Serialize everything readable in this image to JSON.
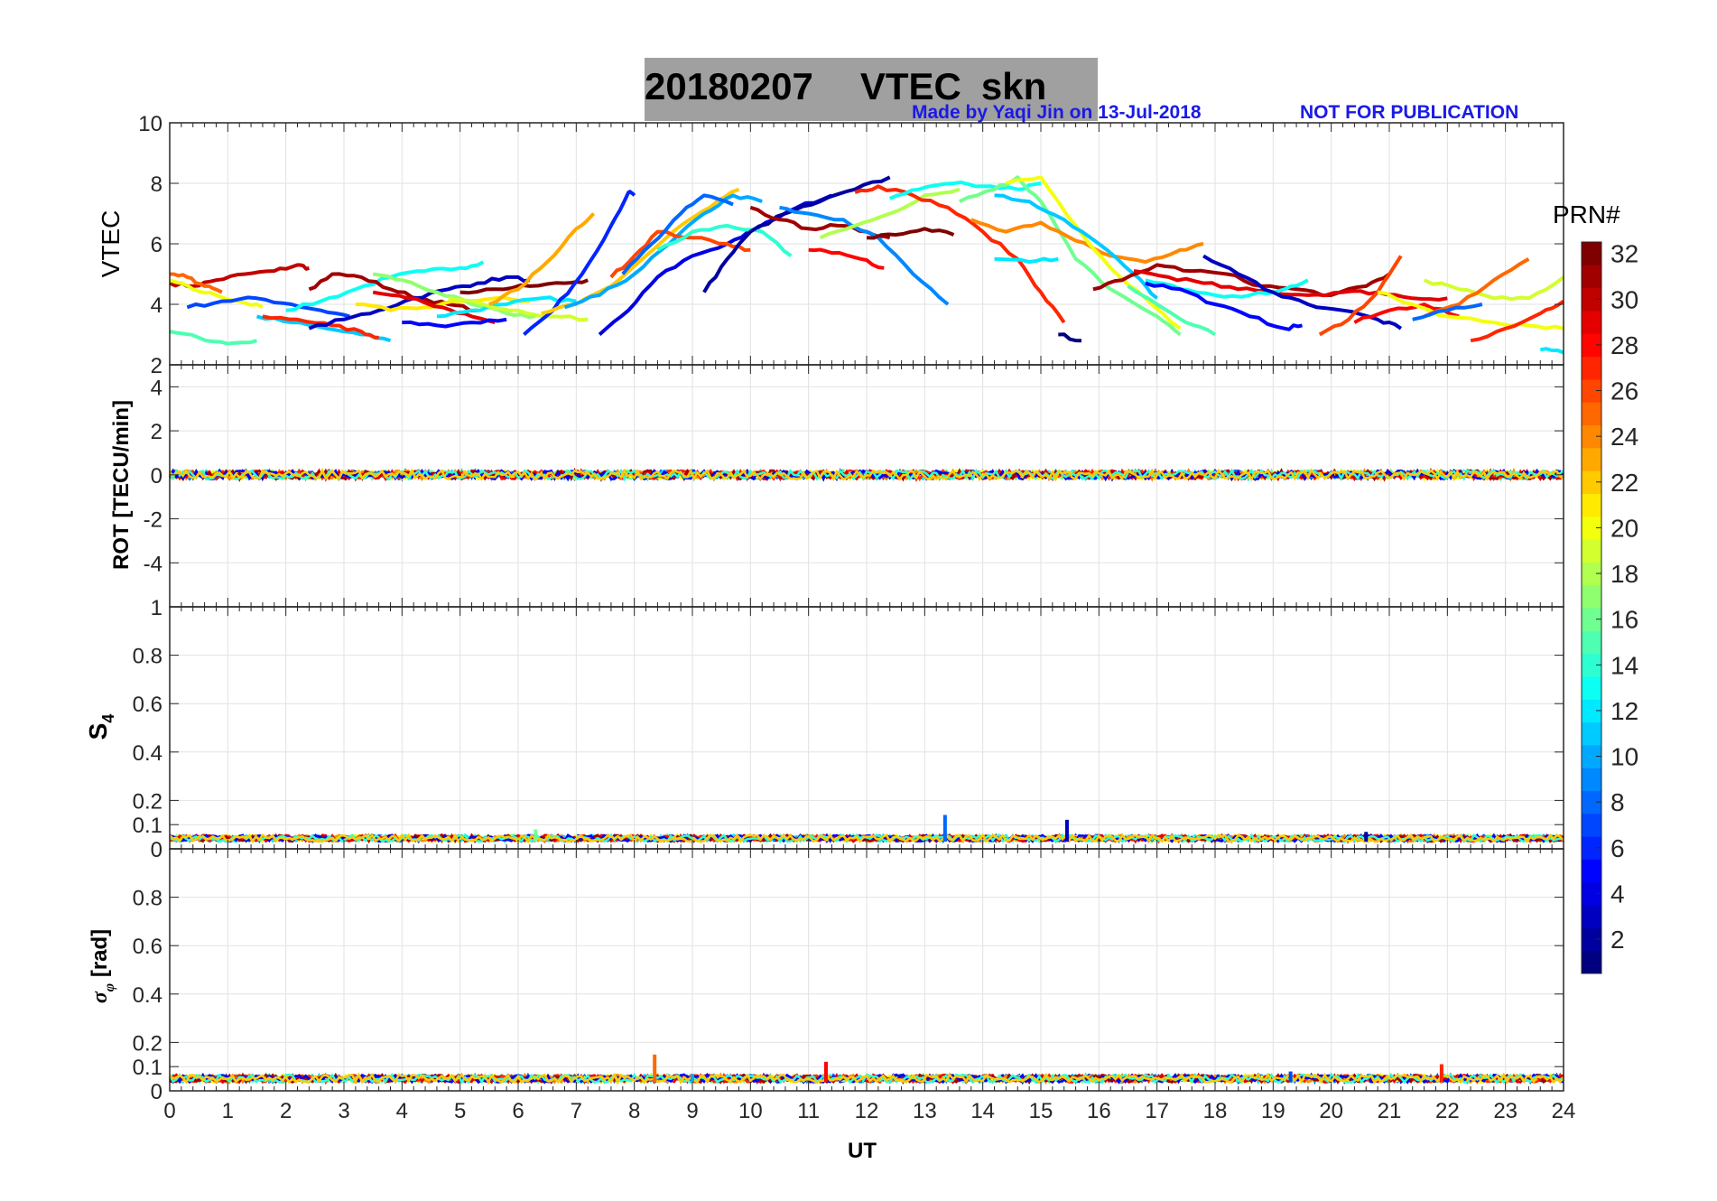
{
  "title": {
    "date": "20180207",
    "quantity": "VTEC",
    "station": "skn",
    "credit": "Made by Yaqi Jin on 13-Jul-2018",
    "notice": "NOT FOR PUBLICATION"
  },
  "colorbar": {
    "label": "PRN#",
    "range": [
      1,
      32
    ],
    "ticks": [
      "2",
      "4",
      "6",
      "8",
      "10",
      "12",
      "14",
      "16",
      "18",
      "20",
      "22",
      "24",
      "26",
      "28",
      "30",
      "32"
    ],
    "colormap": "jet"
  },
  "chart_data": [
    {
      "panel": "vtec",
      "type": "line",
      "title": "20180207    VTEC  skn",
      "xlabel": "",
      "ylabel": "VTEC",
      "xlim": [
        0,
        24
      ],
      "ylim": [
        2,
        10
      ],
      "yticks": [
        "2",
        "4",
        "6",
        "8",
        "10"
      ],
      "grid": true,
      "series": [
        {
          "prn": 30,
          "x": [
            0,
            0.4,
            0.8,
            1.3,
            1.8,
            2.2,
            2.4
          ],
          "y": [
            4.7,
            4.6,
            4.8,
            5.0,
            5.1,
            5.3,
            5.2
          ]
        },
        {
          "prn": 25,
          "x": [
            0,
            0.3,
            0.6,
            0.9
          ],
          "y": [
            5.0,
            4.9,
            4.6,
            4.4
          ]
        },
        {
          "prn": 20,
          "x": [
            0,
            0.4,
            0.8,
            1.2,
            1.6
          ],
          "y": [
            4.8,
            4.5,
            4.3,
            4.1,
            3.9
          ]
        },
        {
          "prn": 15,
          "x": [
            0,
            0.5,
            1.0,
            1.5
          ],
          "y": [
            3.1,
            2.9,
            2.7,
            2.8
          ]
        },
        {
          "prn": 7,
          "x": [
            0.3,
            0.9,
            1.5,
            2.1,
            2.6,
            3.1
          ],
          "y": [
            3.9,
            4.1,
            4.2,
            4.0,
            3.8,
            3.6
          ]
        },
        {
          "prn": 11,
          "x": [
            1.5,
            2.1,
            2.7,
            3.3,
            3.8
          ],
          "y": [
            3.6,
            3.4,
            3.2,
            3.0,
            2.8
          ]
        },
        {
          "prn": 27,
          "x": [
            1.6,
            2.2,
            2.8,
            3.3,
            3.6
          ],
          "y": [
            3.6,
            3.5,
            3.3,
            3.1,
            2.9
          ]
        },
        {
          "prn": 13,
          "x": [
            2.0,
            2.6,
            3.2,
            3.8,
            4.4,
            5.0,
            5.4
          ],
          "y": [
            3.8,
            4.1,
            4.5,
            4.9,
            5.1,
            5.2,
            5.4
          ]
        },
        {
          "prn": 31,
          "x": [
            2.4,
            2.8,
            3.3,
            3.8,
            4.3,
            4.8,
            5.3
          ],
          "y": [
            4.5,
            5.0,
            4.9,
            4.5,
            4.2,
            4.0,
            3.8
          ]
        },
        {
          "prn": 3,
          "x": [
            2.4,
            3.0,
            3.6,
            4.2,
            4.8,
            5.3,
            5.8,
            6.2
          ],
          "y": [
            3.2,
            3.5,
            3.8,
            4.2,
            4.5,
            4.7,
            4.9,
            4.8
          ]
        },
        {
          "prn": 21,
          "x": [
            3.2,
            3.8,
            4.4,
            5.0,
            5.6,
            6.2
          ],
          "y": [
            4.0,
            3.8,
            3.9,
            4.1,
            4.2,
            4.1
          ]
        },
        {
          "prn": 17,
          "x": [
            3.5,
            4.0,
            4.6,
            5.2,
            5.8,
            6.3
          ],
          "y": [
            5.0,
            4.8,
            4.4,
            4.0,
            3.7,
            3.6
          ]
        },
        {
          "prn": 29,
          "x": [
            3.5,
            4.1,
            4.7,
            5.2,
            5.6
          ],
          "y": [
            4.4,
            4.2,
            3.9,
            3.6,
            3.4
          ]
        },
        {
          "prn": 5,
          "x": [
            4.0,
            4.6,
            5.2,
            5.8
          ],
          "y": [
            3.4,
            3.3,
            3.4,
            3.5
          ]
        },
        {
          "prn": 12,
          "x": [
            4.6,
            5.2,
            5.8,
            6.4,
            7.0
          ],
          "y": [
            3.6,
            3.8,
            4.0,
            4.2,
            4.1
          ]
        },
        {
          "prn": 19,
          "x": [
            4.8,
            5.4,
            6.0,
            6.6,
            7.2
          ],
          "y": [
            4.2,
            4.0,
            3.8,
            3.6,
            3.5
          ]
        },
        {
          "prn": 32,
          "x": [
            5.0,
            5.6,
            6.2,
            6.8,
            7.2
          ],
          "y": [
            4.4,
            4.5,
            4.6,
            4.7,
            4.8
          ]
        },
        {
          "prn": 23,
          "x": [
            5.5,
            6.0,
            6.5,
            7.0,
            7.3
          ],
          "y": [
            4.0,
            4.5,
            5.4,
            6.5,
            7.0
          ]
        },
        {
          "prn": 6,
          "x": [
            6.1,
            6.6,
            7.1,
            7.6,
            7.9,
            8.0
          ],
          "y": [
            3.0,
            3.8,
            5.0,
            6.6,
            7.7,
            7.6
          ]
        },
        {
          "prn": 22,
          "x": [
            6.4,
            7.0,
            7.6,
            8.2,
            8.8,
            9.3,
            9.8
          ],
          "y": [
            3.7,
            4.0,
            4.6,
            5.6,
            6.6,
            7.2,
            7.8
          ]
        },
        {
          "prn": 10,
          "x": [
            6.8,
            7.4,
            8.0,
            8.6,
            9.2,
            9.7,
            10.2
          ],
          "y": [
            3.9,
            4.3,
            5.0,
            6.0,
            7.0,
            7.6,
            7.4
          ]
        },
        {
          "prn": 4,
          "x": [
            7.4,
            7.9,
            8.4,
            9.0,
            9.6,
            10.1,
            10.8,
            11.4
          ],
          "y": [
            3.0,
            3.8,
            4.9,
            5.6,
            6.0,
            6.5,
            7.2,
            7.6
          ]
        },
        {
          "prn": 26,
          "x": [
            7.6,
            8.0,
            8.4,
            9.0,
            9.6,
            10.0
          ],
          "y": [
            4.9,
            5.6,
            6.4,
            6.2,
            6.0,
            5.8
          ]
        },
        {
          "prn": 8,
          "x": [
            7.8,
            8.3,
            8.8,
            9.2,
            9.7
          ],
          "y": [
            5.0,
            6.0,
            7.0,
            7.6,
            7.3
          ]
        },
        {
          "prn": 14,
          "x": [
            8.4,
            9.0,
            9.6,
            10.2,
            10.7
          ],
          "y": [
            5.8,
            6.4,
            6.6,
            6.4,
            5.6
          ]
        },
        {
          "prn": 2,
          "x": [
            9.2,
            9.6,
            10.0,
            10.6,
            11.2,
            11.8,
            12.4
          ],
          "y": [
            4.4,
            5.5,
            6.4,
            7.0,
            7.4,
            7.8,
            8.2
          ]
        },
        {
          "prn": 31,
          "x": [
            10.0,
            10.5,
            11.0,
            11.5,
            12.0,
            12.4
          ],
          "y": [
            7.2,
            6.8,
            6.5,
            6.6,
            6.4,
            6.2
          ]
        },
        {
          "prn": 9,
          "x": [
            10.5,
            11.0,
            11.6,
            12.2,
            12.8,
            13.4
          ],
          "y": [
            7.2,
            7.0,
            6.8,
            6.2,
            5.0,
            4.0
          ]
        },
        {
          "prn": 28,
          "x": [
            11.0,
            11.4,
            11.9,
            12.3
          ],
          "y": [
            5.8,
            5.7,
            5.5,
            5.2
          ]
        },
        {
          "prn": 18,
          "x": [
            11.2,
            11.8,
            12.4,
            13.0,
            13.6
          ],
          "y": [
            6.2,
            6.6,
            7.0,
            7.6,
            7.8
          ]
        },
        {
          "prn": 27,
          "x": [
            11.8,
            12.2,
            12.8,
            13.4,
            14.0,
            14.6,
            15.0,
            15.4
          ],
          "y": [
            7.7,
            7.9,
            7.6,
            7.2,
            6.4,
            5.5,
            4.4,
            3.4
          ]
        },
        {
          "prn": 32,
          "x": [
            12.0,
            12.5,
            13.0,
            13.5
          ],
          "y": [
            6.2,
            6.3,
            6.5,
            6.3
          ]
        },
        {
          "prn": 13,
          "x": [
            12.4,
            12.9,
            13.5,
            14.0,
            14.6,
            15.0
          ],
          "y": [
            7.5,
            7.8,
            8.0,
            7.9,
            7.8,
            8.0
          ]
        },
        {
          "prn": 16,
          "x": [
            13.6,
            14.2,
            14.6,
            15.0,
            15.6,
            16.2,
            17.0,
            17.4
          ],
          "y": [
            7.4,
            7.8,
            8.2,
            7.4,
            5.5,
            4.5,
            3.6,
            3.0
          ]
        },
        {
          "prn": 24,
          "x": [
            13.8,
            14.4,
            15.0,
            15.6,
            16.2,
            16.8,
            17.4,
            17.8
          ],
          "y": [
            6.8,
            6.4,
            6.7,
            6.1,
            5.6,
            5.4,
            5.8,
            6.0
          ]
        },
        {
          "prn": 20,
          "x": [
            14.4,
            15.0,
            15.6,
            16.2,
            16.8,
            17.4
          ],
          "y": [
            8.0,
            8.2,
            6.6,
            5.2,
            4.2,
            3.2
          ]
        },
        {
          "prn": 11,
          "x": [
            14.2,
            14.8,
            15.4,
            16.0,
            16.6,
            17.0
          ],
          "y": [
            7.6,
            7.4,
            6.8,
            6.0,
            5.0,
            4.2
          ]
        },
        {
          "prn": 12,
          "x": [
            14.2,
            14.8,
            15.3
          ],
          "y": [
            5.5,
            5.4,
            5.5
          ]
        },
        {
          "prn": 1,
          "x": [
            15.3,
            15.7
          ],
          "y": [
            3.0,
            2.8
          ]
        },
        {
          "prn": 31,
          "x": [
            15.9,
            16.4,
            17.0,
            17.6,
            18.2,
            18.8,
            19.4,
            20.0,
            20.6,
            21.0
          ],
          "y": [
            4.5,
            4.8,
            5.3,
            5.1,
            5.0,
            4.6,
            4.5,
            4.3,
            4.6,
            5.0
          ]
        },
        {
          "prn": 29,
          "x": [
            16.6,
            17.2,
            17.8,
            18.4,
            19.0,
            19.6,
            20.2,
            20.8,
            21.4,
            22.0
          ],
          "y": [
            5.1,
            4.9,
            4.7,
            4.5,
            4.4,
            4.3,
            4.4,
            4.4,
            4.2,
            4.2
          ]
        },
        {
          "prn": 15,
          "x": [
            16.5,
            17.0,
            17.5,
            18.0
          ],
          "y": [
            4.6,
            4.0,
            3.4,
            3.0
          ]
        },
        {
          "prn": 13,
          "x": [
            16.8,
            17.4,
            18.0,
            18.6,
            19.2,
            19.6
          ],
          "y": [
            4.8,
            4.5,
            4.3,
            4.3,
            4.5,
            4.8
          ]
        },
        {
          "prn": 5,
          "x": [
            16.8,
            17.4,
            18.0,
            18.6,
            19.2,
            19.5
          ],
          "y": [
            4.7,
            4.5,
            4.0,
            3.6,
            3.2,
            3.3
          ]
        },
        {
          "prn": 3,
          "x": [
            17.8,
            18.4,
            19.0,
            19.6,
            20.2,
            20.8,
            21.2
          ],
          "y": [
            5.6,
            5.0,
            4.4,
            4.0,
            3.8,
            3.5,
            3.2
          ]
        },
        {
          "prn": 26,
          "x": [
            19.8,
            20.3,
            20.8,
            21.2
          ],
          "y": [
            3.0,
            3.5,
            4.4,
            5.6
          ]
        },
        {
          "prn": 28,
          "x": [
            20.4,
            21.0,
            21.6,
            22.2
          ],
          "y": [
            3.4,
            3.8,
            4.0,
            3.6
          ]
        },
        {
          "prn": 20,
          "x": [
            20.8,
            21.4,
            22.0,
            22.8,
            23.4,
            24.0
          ],
          "y": [
            4.4,
            4.0,
            3.6,
            3.4,
            3.3,
            3.2
          ]
        },
        {
          "prn": 19,
          "x": [
            21.6,
            22.2,
            22.8,
            23.4,
            24.0
          ],
          "y": [
            4.8,
            4.5,
            4.2,
            4.2,
            4.9
          ]
        },
        {
          "prn": 27,
          "x": [
            22.4,
            23.0,
            23.6,
            24.0
          ],
          "y": [
            2.8,
            3.2,
            3.7,
            4.1
          ]
        },
        {
          "prn": 25,
          "x": [
            21.6,
            22.2,
            22.8,
            23.4
          ],
          "y": [
            3.6,
            4.0,
            4.8,
            5.5
          ]
        },
        {
          "prn": 8,
          "x": [
            21.4,
            22.0,
            22.6
          ],
          "y": [
            3.5,
            3.8,
            4.0
          ]
        },
        {
          "prn": 12,
          "x": [
            23.6,
            24.0
          ],
          "y": [
            2.5,
            2.4
          ]
        }
      ]
    },
    {
      "panel": "rot",
      "type": "line",
      "ylabel": "ROT [TECU/min]",
      "xlim": [
        0,
        24
      ],
      "ylim": [
        -6,
        5
      ],
      "yticks": [
        "-4",
        "-2",
        "0",
        "2",
        "4"
      ],
      "grid": true,
      "baseline": 0,
      "noise_amplitude": 0.25
    },
    {
      "panel": "s4",
      "type": "line",
      "ylabel": "S4",
      "xlim": [
        0,
        24
      ],
      "ylim": [
        0,
        1
      ],
      "yticks": [
        "0",
        "0.1",
        "0.2",
        "0.4",
        "0.6",
        "0.8",
        "1"
      ],
      "grid": true,
      "baseline": 0.03,
      "spikes": [
        {
          "x": 13.35,
          "y": 0.14,
          "prn": 8
        },
        {
          "x": 15.45,
          "y": 0.12,
          "prn": 3
        },
        {
          "x": 6.3,
          "y": 0.08,
          "prn": 16
        },
        {
          "x": 20.6,
          "y": 0.07,
          "prn": 2
        }
      ]
    },
    {
      "panel": "sigma_phi",
      "type": "line",
      "ylabel": "σφ [rad]",
      "xlabel": "UT",
      "xlim": [
        0,
        24
      ],
      "ylim": [
        0,
        1
      ],
      "xticks": [
        "0",
        "1",
        "2",
        "3",
        "4",
        "5",
        "6",
        "7",
        "8",
        "9",
        "10",
        "11",
        "12",
        "13",
        "14",
        "15",
        "16",
        "17",
        "18",
        "19",
        "20",
        "21",
        "22",
        "23",
        "24"
      ],
      "yticks": [
        "0",
        "0.1",
        "0.2",
        "0.4",
        "0.6",
        "0.8"
      ],
      "grid": true,
      "baseline": 0.035,
      "spikes": [
        {
          "x": 8.35,
          "y": 0.15,
          "prn": 25
        },
        {
          "x": 11.3,
          "y": 0.12,
          "prn": 28
        },
        {
          "x": 21.9,
          "y": 0.11,
          "prn": 27
        },
        {
          "x": 19.3,
          "y": 0.08,
          "prn": 7
        },
        {
          "x": 9.0,
          "y": 0.07,
          "prn": 10
        }
      ]
    }
  ]
}
